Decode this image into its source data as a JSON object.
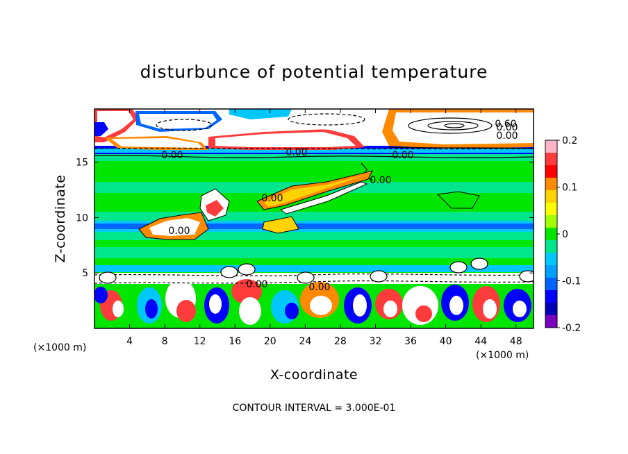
{
  "chart_data": {
    "type": "heatmap",
    "title": "disturbunce of potential temperature",
    "xlabel": "X-coordinate",
    "ylabel": "Z-coordinate",
    "x_unit_left": "(×1000 m)",
    "x_unit_right": "(×1000 m)",
    "xlim": [
      0,
      50
    ],
    "ylim": [
      0,
      19.8
    ],
    "xticks": [
      4,
      8,
      12,
      16,
      20,
      24,
      28,
      32,
      36,
      40,
      44,
      48
    ],
    "yticks": [
      5,
      10,
      15
    ],
    "colorbar": {
      "range": [
        -0.2,
        0.2
      ],
      "ticks": [
        "0.2",
        "0.1",
        "0",
        "-0.1",
        "-0.2"
      ],
      "tick_values": [
        0.2,
        0.1,
        0,
        -0.1,
        -0.2
      ],
      "colors": [
        "#ffb4c8",
        "#ff3c3c",
        "#ff0000",
        "#ff8a00",
        "#ffd200",
        "#ffff00",
        "#a0ff00",
        "#00e600",
        "#00e68c",
        "#00c8ff",
        "#00a0ff",
        "#0064ff",
        "#0000ff",
        "#0000b4",
        "#7a00c0"
      ]
    },
    "contour_labels": [
      "0.00",
      "0.00",
      "0.00",
      "0.00",
      "0.00",
      "0.00",
      "0.00",
      "0.00",
      "0.00",
      "0.00",
      "0.60"
    ],
    "footer": "CONTOUR INTERVAL = 3.000E-01"
  }
}
